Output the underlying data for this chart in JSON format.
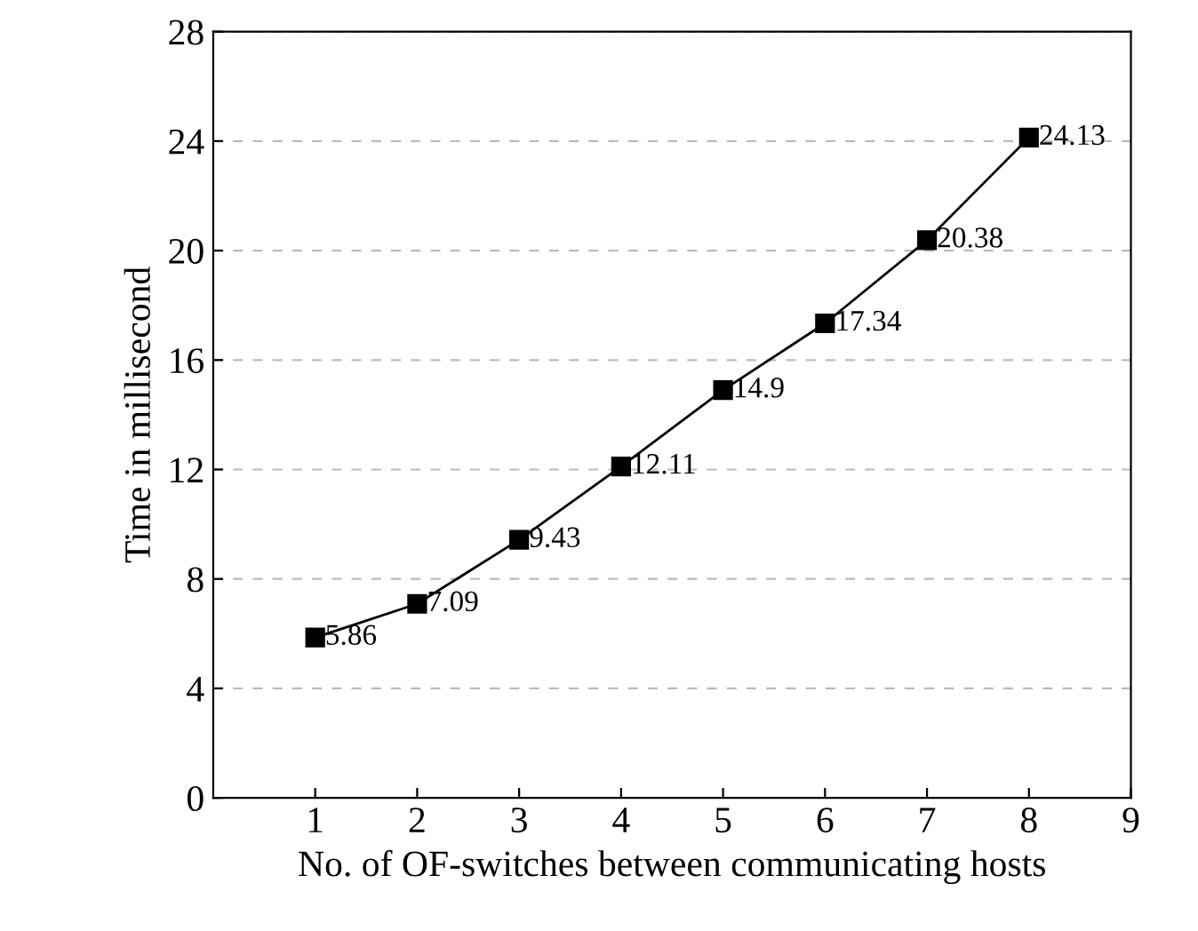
{
  "chart_data": {
    "type": "line",
    "xlabel": "No. of OF-switches between communicating hosts",
    "ylabel": "Time in millisecond",
    "x": [
      1,
      2,
      3,
      4,
      5,
      6,
      7,
      8
    ],
    "series": [
      {
        "color": "#000000",
        "values": [
          5.86,
          7.09,
          9.43,
          12.11,
          14.9,
          17.34,
          20.38,
          24.13
        ]
      }
    ],
    "xlim": [
      0,
      9
    ],
    "xticks": [
      1,
      2,
      3,
      4,
      5,
      6,
      7,
      8,
      9
    ],
    "ylim": [
      0,
      28
    ],
    "yticks": [
      0,
      4,
      8,
      12,
      16,
      20,
      24,
      28
    ],
    "grid": "y",
    "marker": "square",
    "line_style": "solid",
    "data_labels": true
  }
}
